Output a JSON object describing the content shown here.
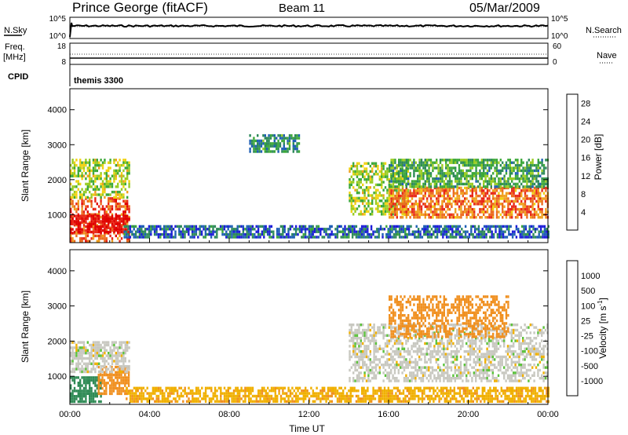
{
  "header": {
    "station": "Prince George (fitACF)",
    "beam": "Beam 11",
    "date": "05/Mar/2009"
  },
  "nsky_panel": {
    "left_label": "N.Sky",
    "left_ticks": [
      "10^5",
      "10^0"
    ],
    "right_label": "N.Search",
    "right_ticks": [
      "10^5",
      "10^0"
    ]
  },
  "freq_panel": {
    "left_label_line1": "Freq.",
    "left_label_line2": "[MHz]",
    "left_ticks": [
      "18",
      "8"
    ],
    "right_label": "Nave",
    "right_ticks": [
      "60",
      "0"
    ]
  },
  "cpid": {
    "label": "CPID",
    "value": "themis 3300"
  },
  "colors": {
    "power_scale": [
      "#1c1cd8",
      "#1f5fb5",
      "#2e8a5a",
      "#3ca838",
      "#99cc22",
      "#f0d210",
      "#f0a01e",
      "#ec6a1e",
      "#e82818",
      "#e00000"
    ],
    "velocity_scale": [
      "#ee0000",
      "#ef5015",
      "#f09020",
      "#f0b000",
      "#c8c8c0",
      "#c8c8c0",
      "#5ac23a",
      "#2f8a55",
      "#1f5fb5",
      "#1c1cd8"
    ]
  },
  "chart_data": [
    {
      "type": "heatmap",
      "panel": "power",
      "xlabel": "",
      "ylabel": "Slant Range [km]",
      "ylim": [
        200,
        4600
      ],
      "xlim": [
        "00:00",
        "24:00"
      ],
      "y_ticks": [
        "1000",
        "2000",
        "3000",
        "4000"
      ],
      "colorbar": {
        "label": "Power [dB]",
        "ticks": [
          "4",
          "8",
          "12",
          "16",
          "20",
          "24",
          "28"
        ],
        "range": [
          0,
          30
        ]
      },
      "regions": [
        {
          "t": [
            0.0,
            3.0
          ],
          "range_km": [
            250,
            1500
          ],
          "value": 24
        },
        {
          "t": [
            0.0,
            3.0
          ],
          "range_km": [
            500,
            1000
          ],
          "value": 29
        },
        {
          "t": [
            0.0,
            3.0
          ],
          "range_km": [
            1500,
            2600
          ],
          "value": 14
        },
        {
          "t": [
            2.7,
            24.0
          ],
          "range_km": [
            350,
            700
          ],
          "value": 5
        },
        {
          "t": [
            9.0,
            11.5
          ],
          "range_km": [
            2800,
            3300
          ],
          "value": 8
        },
        {
          "t": [
            14.0,
            17.0
          ],
          "range_km": [
            1000,
            2500
          ],
          "value": 14
        },
        {
          "t": [
            16.0,
            24.0
          ],
          "range_km": [
            900,
            1800
          ],
          "value": 22
        },
        {
          "t": [
            16.0,
            24.0
          ],
          "range_km": [
            1800,
            2600
          ],
          "value": 10
        }
      ]
    },
    {
      "type": "heatmap",
      "panel": "velocity",
      "xlabel": "Time UT",
      "ylabel": "Slant Range [km]",
      "ylim": [
        200,
        4600
      ],
      "xlim": [
        "00:00",
        "24:00"
      ],
      "x_ticks": [
        "00:00",
        "04:00",
        "08:00",
        "12:00",
        "16:00",
        "20:00",
        "00:00"
      ],
      "y_ticks": [
        "1000",
        "2000",
        "3000",
        "4000"
      ],
      "colorbar": {
        "label": "Velocity [m s",
        "label_sup": "-1",
        "label_end": "]",
        "ticks": [
          "1000",
          "500",
          "100",
          "25",
          "-25",
          "-100",
          "-500",
          "-1000"
        ]
      },
      "regions": [
        {
          "t": [
            0.0,
            1.6
          ],
          "range_km": [
            250,
            1000
          ],
          "value": 150
        },
        {
          "t": [
            1.4,
            3.0
          ],
          "range_km": [
            500,
            1300
          ],
          "value": -250
        },
        {
          "t": [
            0.0,
            3.0
          ],
          "range_km": [
            1100,
            2000
          ],
          "value": 0
        },
        {
          "t": [
            2.8,
            24.0
          ],
          "range_km": [
            250,
            700
          ],
          "value": -80
        },
        {
          "t": [
            14.0,
            24.0
          ],
          "range_km": [
            900,
            2500
          ],
          "value": 0
        },
        {
          "t": [
            16.0,
            22.0
          ],
          "range_km": [
            2100,
            3300
          ],
          "value": -300
        }
      ]
    }
  ]
}
